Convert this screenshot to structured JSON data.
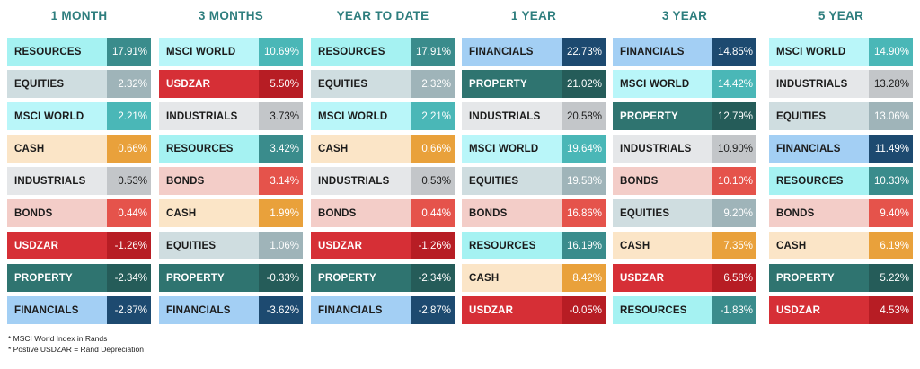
{
  "chart_data": {
    "type": "table",
    "columns": [
      {
        "title": "1 MONTH",
        "rows": [
          {
            "label": "RESOURCES",
            "value": "17.91%"
          },
          {
            "label": "EQUITIES",
            "value": "2.32%"
          },
          {
            "label": "MSCI WORLD",
            "value": "2.21%"
          },
          {
            "label": "CASH",
            "value": "0.66%"
          },
          {
            "label": "INDUSTRIALS",
            "value": "0.53%"
          },
          {
            "label": "BONDS",
            "value": "0.44%"
          },
          {
            "label": "USDZAR",
            "value": "-1.26%"
          },
          {
            "label": "PROPERTY",
            "value": "-2.34%"
          },
          {
            "label": "FINANCIALS",
            "value": "-2.87%"
          }
        ]
      },
      {
        "title": "3 MONTHS",
        "rows": [
          {
            "label": "MSCI WORLD",
            "value": "10.69%"
          },
          {
            "label": "USDZAR",
            "value": "5.50%"
          },
          {
            "label": "INDUSTRIALS",
            "value": "3.73%"
          },
          {
            "label": "RESOURCES",
            "value": "3.42%"
          },
          {
            "label": "BONDS",
            "value": "3.14%"
          },
          {
            "label": "CASH",
            "value": "1.99%"
          },
          {
            "label": "EQUITIES",
            "value": "1.06%"
          },
          {
            "label": "PROPERTY",
            "value": "-0.33%"
          },
          {
            "label": "FINANCIALS",
            "value": "-3.62%"
          }
        ]
      },
      {
        "title": "YEAR TO DATE",
        "rows": [
          {
            "label": "RESOURCES",
            "value": "17.91%"
          },
          {
            "label": "EQUITIES",
            "value": "2.32%"
          },
          {
            "label": "MSCI WORLD",
            "value": "2.21%"
          },
          {
            "label": "CASH",
            "value": "0.66%"
          },
          {
            "label": "INDUSTRIALS",
            "value": "0.53%"
          },
          {
            "label": "BONDS",
            "value": "0.44%"
          },
          {
            "label": "USDZAR",
            "value": "-1.26%"
          },
          {
            "label": "PROPERTY",
            "value": "-2.34%"
          },
          {
            "label": "FINANCIALS",
            "value": "-2.87%"
          }
        ]
      },
      {
        "title": "1 YEAR",
        "rows": [
          {
            "label": "FINANCIALS",
            "value": "22.73%"
          },
          {
            "label": "PROPERTY",
            "value": "21.02%"
          },
          {
            "label": "INDUSTRIALS",
            "value": "20.58%"
          },
          {
            "label": "MSCI WORLD",
            "value": "19.64%"
          },
          {
            "label": "EQUITIES",
            "value": "19.58%"
          },
          {
            "label": "BONDS",
            "value": "16.86%"
          },
          {
            "label": "RESOURCES",
            "value": "16.19%"
          },
          {
            "label": "CASH",
            "value": "8.42%"
          },
          {
            "label": "USDZAR",
            "value": "-0.05%"
          }
        ]
      },
      {
        "title": "3 YEAR",
        "rows": [
          {
            "label": "FINANCIALS",
            "value": "14.85%"
          },
          {
            "label": "MSCI WORLD",
            "value": "14.42%"
          },
          {
            "label": "PROPERTY",
            "value": "12.79%"
          },
          {
            "label": "INDUSTRIALS",
            "value": "10.90%"
          },
          {
            "label": "BONDS",
            "value": "10.10%"
          },
          {
            "label": "EQUITIES",
            "value": "9.20%"
          },
          {
            "label": "CASH",
            "value": "7.35%"
          },
          {
            "label": "USDZAR",
            "value": "6.58%"
          },
          {
            "label": "RESOURCES",
            "value": "-1.83%"
          }
        ]
      },
      {
        "title": "5 YEAR",
        "rows": [
          {
            "label": "MSCI WORLD",
            "value": "14.90%"
          },
          {
            "label": "INDUSTRIALS",
            "value": "13.28%"
          },
          {
            "label": "EQUITIES",
            "value": "13.06%"
          },
          {
            "label": "FINANCIALS",
            "value": "11.49%"
          },
          {
            "label": "RESOURCES",
            "value": "10.33%"
          },
          {
            "label": "BONDS",
            "value": "9.40%"
          },
          {
            "label": "CASH",
            "value": "6.19%"
          },
          {
            "label": "PROPERTY",
            "value": "5.22%"
          },
          {
            "label": "USDZAR",
            "value": "4.53%"
          }
        ]
      }
    ],
    "asset_colors": {
      "RESOURCES": {
        "name_bg": "#a5f2f2",
        "val_bg": "#3a8c8c",
        "name_fg": "#1b1b1b",
        "val_fg": "#ffffff"
      },
      "EQUITIES": {
        "name_bg": "#cfdde0",
        "val_bg": "#9fb4b9",
        "name_fg": "#1b1b1b",
        "val_fg": "#ffffff"
      },
      "MSCI WORLD": {
        "name_bg": "#b9f6f9",
        "val_bg": "#4ab7b7",
        "name_fg": "#1b1b1b",
        "val_fg": "#ffffff"
      },
      "CASH": {
        "name_bg": "#fbe5c7",
        "val_bg": "#e9a13b",
        "name_fg": "#1b1b1b",
        "val_fg": "#ffffff"
      },
      "INDUSTRIALS": {
        "name_bg": "#e5e7e9",
        "val_bg": "#c3c6c9",
        "name_fg": "#1b1b1b",
        "val_fg": "#1b1b1b"
      },
      "BONDS": {
        "name_bg": "#f3cdc8",
        "val_bg": "#e5534b",
        "name_fg": "#1b1b1b",
        "val_fg": "#ffffff"
      },
      "USDZAR": {
        "name_bg": "#d62f36",
        "val_bg": "#b71d24",
        "name_fg": "#ffffff",
        "val_fg": "#ffffff"
      },
      "PROPERTY": {
        "name_bg": "#2f7470",
        "val_bg": "#255c59",
        "name_fg": "#ffffff",
        "val_fg": "#ffffff"
      },
      "FINANCIALS": {
        "name_bg": "#a3cff4",
        "val_bg": "#1d4a70",
        "name_fg": "#1b1b1b",
        "val_fg": "#ffffff"
      }
    }
  },
  "footnotes": [
    "* MSCI World Index in  Rands",
    "* Postive USDZAR = Rand Depreciation"
  ]
}
